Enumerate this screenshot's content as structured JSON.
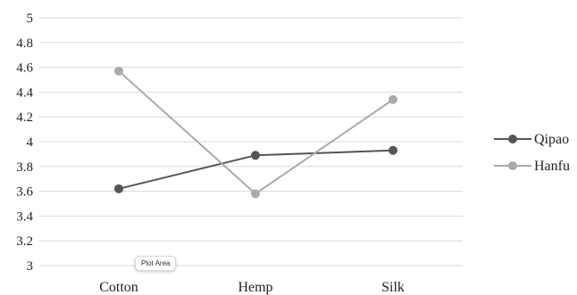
{
  "chart_data": {
    "type": "line",
    "title": "",
    "xlabel": "",
    "ylabel": "",
    "categories": [
      "Cotton",
      "Hemp",
      "Silk"
    ],
    "ylim": [
      3,
      5
    ],
    "yticks": [
      "3",
      "3.2",
      "3.4",
      "3.6",
      "3.8",
      "4",
      "4.2",
      "4.4",
      "4.6",
      "4.8",
      "5"
    ],
    "grid": true,
    "legend_position": "right",
    "series": [
      {
        "name": "Qipao",
        "values": [
          3.62,
          3.89,
          3.93
        ],
        "color": "#555555"
      },
      {
        "name": "Hanfu",
        "values": [
          4.57,
          3.58,
          4.34
        ],
        "color": "#aaaaaa"
      }
    ]
  },
  "tooltip": {
    "text": "Plot Area"
  }
}
